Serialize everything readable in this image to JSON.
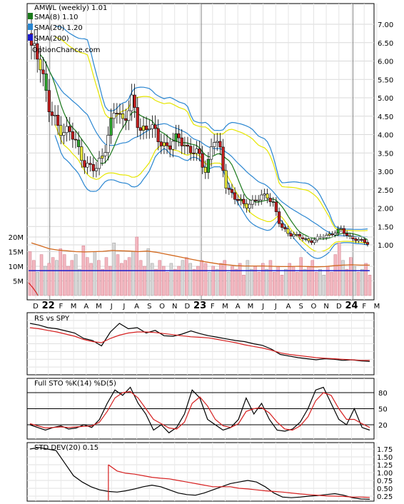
{
  "chart_data": [
    {
      "type": "candlestick",
      "panel": "price",
      "title": "AMWL (weekly) 1.01",
      "legend": [
        {
          "label": "SMA(8) 1.10",
          "color": "#1b7a1b"
        },
        {
          "label": "SMA(20) 1.20",
          "color": "#2a86d1"
        },
        {
          "label": "SMA(200)",
          "color": "#1a1acc"
        }
      ],
      "watermark": "OptionChance.com",
      "y_ticks": [
        "7.00",
        "6.50",
        "6.00",
        "5.50",
        "5.00",
        "4.50",
        "4.00",
        "3.50",
        "3.00",
        "2.50",
        "2.00",
        "1.50",
        "1.00"
      ],
      "ylim": [
        0.8,
        7.3
      ],
      "x_labels": [
        "D",
        "22",
        "F",
        "M",
        "A",
        "M",
        "J",
        "J",
        "A",
        "S",
        "O",
        "N",
        "D",
        "23",
        "F",
        "M",
        "A",
        "M",
        "J",
        "J",
        "A",
        "S",
        "O",
        "N",
        "D",
        "24",
        "F",
        "M"
      ],
      "close_path": [
        [
          0,
          6.3
        ],
        [
          3,
          6.0
        ],
        [
          5,
          4.7
        ],
        [
          8,
          4.2
        ],
        [
          11,
          4.1
        ],
        [
          13,
          3.8
        ],
        [
          16,
          3.2
        ],
        [
          19,
          3.0
        ],
        [
          22,
          3.7
        ],
        [
          25,
          4.7
        ],
        [
          27,
          4.4
        ],
        [
          30,
          4.9
        ],
        [
          32,
          4.1
        ],
        [
          35,
          4.3
        ],
        [
          38,
          3.8
        ],
        [
          41,
          3.7
        ],
        [
          44,
          3.9
        ],
        [
          47,
          3.6
        ],
        [
          50,
          3.4
        ],
        [
          52,
          3.0
        ],
        [
          54,
          3.9
        ],
        [
          56,
          3.6
        ],
        [
          58,
          2.6
        ],
        [
          61,
          2.2
        ],
        [
          64,
          2.1
        ],
        [
          67,
          2.2
        ],
        [
          70,
          2.4
        ],
        [
          72,
          2.1
        ],
        [
          74,
          1.5
        ],
        [
          77,
          1.3
        ],
        [
          80,
          1.2
        ],
        [
          83,
          1.1
        ],
        [
          86,
          1.2
        ],
        [
          89,
          1.3
        ],
        [
          92,
          1.4
        ],
        [
          95,
          1.2
        ],
        [
          98,
          1.1
        ],
        [
          100,
          1.05
        ]
      ]
    },
    {
      "type": "bar",
      "panel": "volume",
      "y_ticks": [
        "20M",
        "15M",
        "10M",
        "5M"
      ],
      "ylim": [
        0,
        25
      ],
      "values_m": [
        15,
        12,
        8,
        14,
        10,
        11,
        13,
        12,
        16,
        14,
        10,
        12,
        14,
        9,
        17,
        13,
        11,
        15,
        12,
        9,
        13,
        10,
        18,
        14,
        11,
        12,
        13,
        15,
        20,
        12,
        10,
        16,
        11,
        9,
        12,
        10,
        8,
        11,
        9,
        10,
        12,
        13,
        11,
        9,
        10,
        12,
        11,
        8,
        10,
        9,
        11,
        12,
        8,
        10,
        9,
        11,
        7,
        12,
        9,
        10,
        8,
        11,
        9,
        12,
        8,
        10,
        7,
        9,
        11,
        10,
        8,
        13,
        9,
        10,
        12,
        8,
        9,
        7,
        10,
        8,
        14,
        18,
        12,
        9,
        13,
        10,
        8,
        9,
        11,
        7
      ],
      "sma_m": [
        18,
        17,
        16,
        15.5,
        15.3,
        15,
        14.9,
        15,
        15.1,
        15.4,
        15.3,
        15.2,
        15,
        15.2,
        14.8,
        14.2,
        13.6,
        13,
        12.4,
        11.8,
        11.3,
        10.8,
        10.5,
        10.2,
        10.1,
        10.1,
        10.1,
        10,
        9.9,
        9.9,
        10,
        9.9,
        9.8,
        9.9,
        10.2,
        10.4,
        10.5,
        10.4,
        10.4
      ],
      "sma200_m": 8.5
    },
    {
      "type": "line",
      "panel": "rs",
      "title": "RS vs SPY",
      "series": [
        {
          "values": [
            88,
            85,
            80,
            78,
            74,
            70,
            60,
            56,
            46,
            72,
            88,
            78,
            80,
            70,
            75,
            65,
            64,
            68,
            74,
            69,
            65,
            62,
            59,
            56,
            54,
            50,
            47,
            40,
            30,
            27,
            24,
            22,
            20,
            22,
            21,
            19,
            20,
            18,
            17
          ],
          "color": "#000000"
        },
        {
          "values": [
            80,
            78,
            75,
            72,
            68,
            64,
            58,
            54,
            52,
            60,
            66,
            70,
            72,
            72,
            71,
            69,
            67,
            65,
            63,
            62,
            61,
            58,
            55,
            52,
            48,
            45,
            42,
            38,
            33,
            30,
            28,
            26,
            24,
            23,
            22,
            21,
            20,
            19,
            19
          ],
          "color": "#d62020"
        }
      ]
    },
    {
      "type": "line",
      "panel": "sto",
      "title": "Full STO %K(14) %D(5)",
      "y_ticks": [
        "80",
        "50",
        "20"
      ],
      "series": [
        {
          "values": [
            20,
            15,
            10,
            15,
            18,
            12,
            14,
            20,
            15,
            30,
            60,
            85,
            75,
            90,
            60,
            40,
            10,
            20,
            5,
            15,
            40,
            85,
            70,
            30,
            20,
            10,
            15,
            30,
            70,
            40,
            60,
            30,
            10,
            8,
            12,
            25,
            50,
            85,
            90,
            60,
            30,
            20,
            50,
            15,
            10
          ],
          "color": "#000000"
        },
        {
          "values": [
            22,
            18,
            14,
            15,
            16,
            15,
            16,
            17,
            18,
            25,
            45,
            70,
            80,
            82,
            70,
            50,
            30,
            22,
            14,
            12,
            25,
            60,
            72,
            55,
            30,
            18,
            15,
            22,
            45,
            50,
            52,
            42,
            25,
            12,
            10,
            18,
            35,
            65,
            80,
            75,
            50,
            30,
            30,
            22,
            15
          ],
          "color": "#d62020"
        }
      ]
    },
    {
      "type": "line",
      "panel": "std",
      "title": "STD DEV(20) 0.15",
      "y_ticks": [
        "1.75",
        "1.50",
        "1.25",
        "1.00",
        "0.75",
        "0.50",
        "0.25"
      ],
      "series": [
        {
          "values": [
            1.75,
            1.8,
            1.75,
            1.7,
            1.3,
            0.9,
            0.7,
            0.55,
            0.45,
            0.4,
            0.38,
            0.42,
            0.48,
            0.55,
            0.6,
            0.55,
            0.45,
            0.35,
            0.3,
            0.28,
            0.35,
            0.45,
            0.55,
            0.65,
            0.7,
            0.75,
            0.7,
            0.55,
            0.35,
            0.22,
            0.2,
            0.22,
            0.25,
            0.27,
            0.3,
            0.33,
            0.28,
            0.2,
            0.16,
            0.15
          ],
          "color": "#000000"
        },
        {
          "values": [
            0,
            0,
            0,
            0,
            0,
            0,
            0,
            0,
            0,
            1.25,
            1.05,
            0.98,
            0.95,
            0.9,
            0.85,
            0.82,
            0.8,
            0.75,
            0.7,
            0.65,
            0.6,
            0.55,
            0.55,
            0.55,
            0.5,
            0.48,
            0.45,
            0.42,
            0.4,
            0.38,
            0.35,
            0.32,
            0.3,
            0.28,
            0.26,
            0.25,
            0.24,
            0.22,
            0.22,
            0.21
          ],
          "color": "#d62020"
        }
      ]
    }
  ]
}
